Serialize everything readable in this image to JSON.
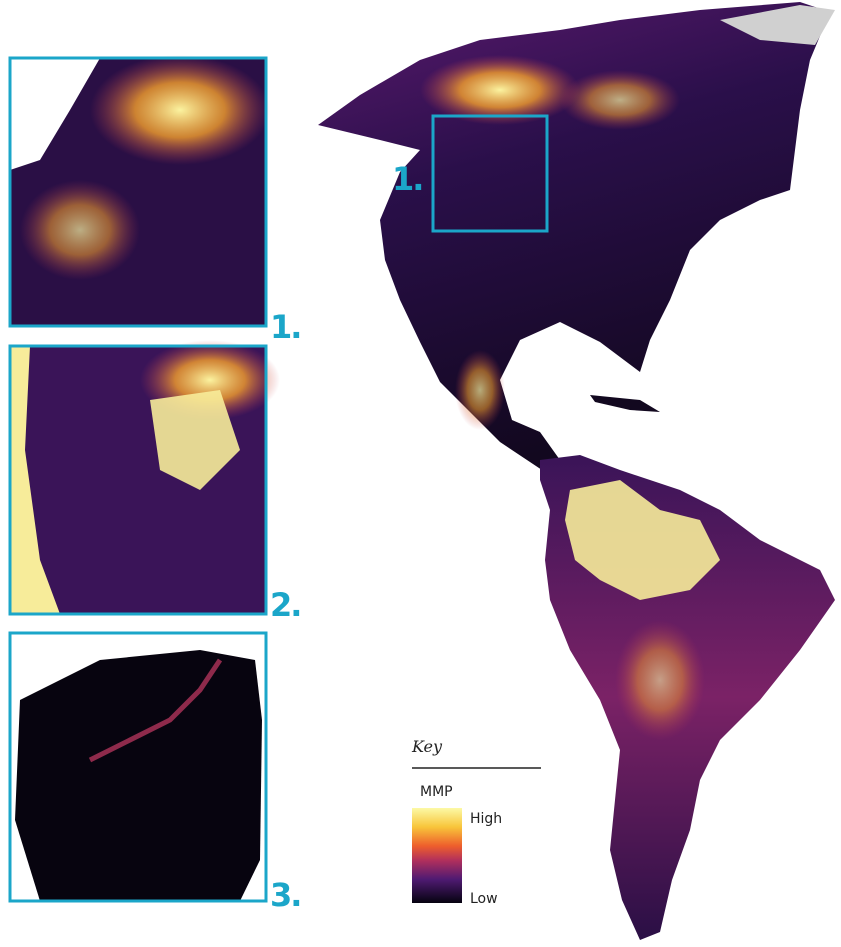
{
  "insets": [
    {
      "label": "1."
    },
    {
      "label": "2."
    },
    {
      "label": "3."
    }
  ],
  "map": {
    "region_label": "1."
  },
  "key": {
    "title": "Key",
    "variable": "MMP",
    "high": "High",
    "low": "Low"
  }
}
